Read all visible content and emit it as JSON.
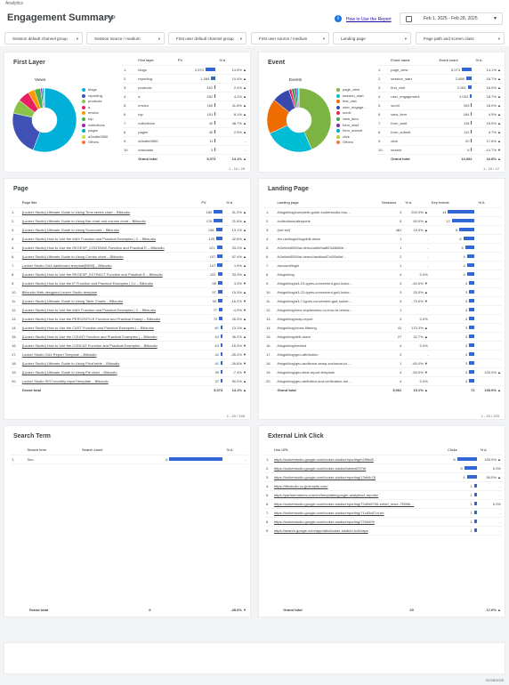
{
  "app": {
    "name": "Analytics"
  },
  "header": {
    "title": "Engagement Summary",
    "pop": "PoP",
    "how_to": "How to Use the Report",
    "date_range": "Feb 1, 2025 - Feb 28, 2025"
  },
  "filters": [
    "Session default channel group",
    "Session source / medium",
    "First user default channel group",
    "First user source / medium",
    "Landing page",
    "Page path and screen class"
  ],
  "first_layer": {
    "title": "First Layer",
    "chart_title": "Views",
    "legend": [
      "blogs",
      "reporting",
      "products",
      "a",
      "envica",
      "top",
      "collections",
      "pages",
      "a2ea6e0550",
      "Others"
    ],
    "colors": [
      "#00b0d8",
      "#3f51b5",
      "#8bc34a",
      "#e91e63",
      "#ff9800",
      "#4caf50",
      "#9c27b0",
      "#00acc1",
      "#cddc39",
      "#ff7043"
    ],
    "columns": [
      "First layer",
      "PV",
      "% Δ"
    ],
    "rows": [
      [
        "blogs",
        "2,670",
        "14.5% ▲"
      ],
      [
        "reporting",
        "1,084",
        "10.4% ▲"
      ],
      [
        "products",
        "340",
        "2.4% ▲"
      ],
      [
        "a",
        "282",
        "4.2% ▲"
      ],
      [
        "envica",
        "160",
        "41.8% ▲"
      ],
      [
        "top",
        "151",
        "8.1% ▲"
      ],
      [
        "collections",
        "40",
        "48.7% ▲"
      ],
      [
        "pages",
        "40",
        "2.5% ▲"
      ],
      [
        "a2ea6e0550",
        "11",
        "-"
      ],
      [
        "dowloads",
        "3",
        "-"
      ]
    ],
    "bars": [
      0.82,
      0.35,
      0.11,
      0.09,
      0.05,
      0.05,
      0.013,
      0.013,
      0.004,
      0.001
    ],
    "total": [
      "Grand total",
      "5,073",
      "14.1% ▲"
    ],
    "pager": "1 - 10 / 28"
  },
  "event": {
    "title": "Event",
    "chart_title": "Events",
    "legend": [
      "page_view",
      "session_start",
      "first_visit",
      "user_engage...",
      "scroll",
      "view_item",
      "form_start",
      "form_submit",
      "click",
      "Others"
    ],
    "colors": [
      "#7cb342",
      "#00bcd4",
      "#ef6c00",
      "#3949ab",
      "#e91e63",
      "#43a047",
      "#8e24aa",
      "#00acc1",
      "#c0ca33",
      "#ff7043"
    ],
    "columns": [
      "Event name",
      "Event count",
      "% Δ"
    ],
    "rows": [
      [
        "page_view",
        "5,073",
        "14.1% ▲"
      ],
      [
        "session_start",
        "2,889",
        "18.7% ▲"
      ],
      [
        "first_visit",
        "2,061",
        "16.0% ▲"
      ],
      [
        "user_engagement",
        "1,053",
        "18.7% ▲"
      ],
      [
        "scroll",
        "163",
        "18.0% ▲"
      ],
      [
        "view_item",
        "184",
        "4.9% ▲"
      ],
      [
        "form_start",
        "118",
        "15.5% ▲"
      ],
      [
        "form_submit",
        "112",
        "4.7% ▲"
      ],
      [
        "click",
        "20",
        "17.6% ▲"
      ],
      [
        "search",
        "6",
        "-14.7% ▼"
      ]
    ],
    "bars": [
      0.82,
      0.47,
      0.33,
      0.17,
      0.03,
      0.03,
      0.02,
      0.02,
      0.004,
      0.001
    ],
    "total": [
      "Grand total",
      "13,062",
      "16.8% ▲"
    ],
    "pager": "1 - 10 / 12"
  },
  "page": {
    "title": "Page",
    "columns": [
      "Page title",
      "PV",
      "% Δ"
    ],
    "rows": [
      [
        "[Looker Studio] Ultimate Guide to Using Time series chart – Blitzudio",
        "180",
        "31.2% ▲"
      ],
      [
        "[Looker Studio] Ultimate Guide to Using Bar chart and column chart – Blitzudio",
        "176",
        "21.8% ▲"
      ],
      [
        "[Looker Studio] Ultimate Guide to Using Scorecard – Blitzudio",
        "138",
        "13.1% ▲"
      ],
      [
        "[Looker Studio] How to Use the MAX Function and Practical Examples | C – Blitzudio",
        "129",
        "42.8% ▲"
      ],
      [
        "[Looker Studio] How to Use the REGEXP_CONTAINS Function and Practical E – Blitzudio",
        "121",
        "33.2% ▲"
      ],
      [
        "[Looker Studio] Ultimate Guide to Using Combo chart – Blitzudio",
        "107",
        "57.4% ▲"
      ],
      [
        "Looker Studio GA4 dashboard template[BEM] – Blitzudio",
        "107",
        "1.9% ▲"
      ],
      [
        "[Looker Studio] How to Use the REGEXP_EXTRACT Function and Practical E – Blitzudio",
        "102",
        "33.3% ▲"
      ],
      [
        "[Looker Studio] How to Use the IF Function and Practical Examples | Co – Blitzudio",
        "98",
        "3.3% ▼"
      ],
      [
        "Blitzudio Web-designed Looker Studio template",
        "97",
        "15.3% ▲"
      ],
      [
        "[Looker Studio] Ultimate Guide to Using Table Charts – Blitzudio",
        "90",
        "-16.2% ▼"
      ],
      [
        "[Looker Studio] How to Use the MAX Function and Practical Examples | C – Blitzudio",
        "77",
        "-4.9% ▼"
      ],
      [
        "[Looker Studio] How to Use the PERCENTILE Function and Practical Examp – Blitzudio",
        "72",
        "26.3% ▲"
      ],
      [
        "[Looker Studio] How to Use the CAST Function and Practical Examples | – Blitzudio",
        "49",
        "13.1% ▲"
      ],
      [
        "[Looker Studio] How to Use the COUNT Function and Practical Examples | – Blitzudio",
        "44",
        "36.2% ▲"
      ],
      [
        "[Looker Studio] How to Use the CONCAT Function and Practical Examples – Blitzudio",
        "43",
        "-16.3% ▼"
      ],
      [
        "Looker Studio GA4 Report Template – Blitzudio",
        "42",
        "-39.2% ▼"
      ],
      [
        "[Looker Studio] Ultimate Guide to Using Pivot table – Blitzudio",
        "41",
        "-26.8% ▼"
      ],
      [
        "[Looker Studio] Ultimate Guide to Using Pie chart – Blitzudio",
        "39",
        "-7.4% ▼"
      ],
      [
        "Looker Studio SEO monthly report template – Blitzudio",
        "37",
        "50.0% ▲"
      ]
    ],
    "bars": [
      1,
      0.98,
      0.77,
      0.72,
      0.67,
      0.59,
      0.59,
      0.57,
      0.54,
      0.54,
      0.5,
      0.43,
      0.4,
      0.27,
      0.24,
      0.24,
      0.23,
      0.23,
      0.22,
      0.21
    ],
    "total": [
      "Grand total",
      "5,073",
      "14.1% ▲"
    ],
    "pager": "1 - 20 / 245"
  },
  "landing": {
    "title": "Landing Page",
    "columns": [
      "Landing page",
      "Sessions",
      "% Δ",
      "Key events",
      "% Δ"
    ],
    "rows": [
      [
        "/blogs/blog/complete-guide-lookerstudio-bou…",
        "3",
        "200.0% ▲",
        "14",
        ""
      ],
      [
        "/collections/allreports",
        "6",
        "50.0% ▲",
        "12",
        ""
      ],
      [
        "(not set)",
        "481",
        "15.3% ▲",
        "8",
        ""
      ],
      [
        "/en-us/blogs/blog/drill-down",
        "1",
        "-",
        "6",
        ""
      ],
      [
        "/b2e6eb5550/ai-demo/ad0e5a8f23d3686b…",
        "1",
        "-",
        "5",
        ""
      ],
      [
        "/b2e6eb5550/ai-demo/dact6aa07c0f5d4ef…",
        "2",
        "-",
        "4",
        ""
      ],
      [
        "/account/login",
        "1",
        "-",
        "4",
        ""
      ],
      [
        "/blogs/blog",
        "4",
        "0.0%",
        "4",
        ""
      ],
      [
        "/blogs/blog/a3-19-types-convenient-ga4-looke…",
        "3",
        "-40.0% ▼",
        "3",
        ""
      ],
      [
        "/blogs/blog/a3-22-types-convenient-ga4-looke…",
        "3",
        "25.0% ▲",
        "3",
        ""
      ],
      [
        "/blogs/blog/a3-7-types-convenient-ga4-looker-…",
        "3",
        "-75.0% ▼",
        "3",
        ""
      ],
      [
        "/blogs/blog/new-explanation-on-how-to-renew-…",
        "1",
        "-",
        "3",
        ""
      ],
      [
        "/blogs/blog/map-report",
        "3",
        "0.0%",
        "3",
        ""
      ],
      [
        "/blogs/blog/cross-filtering",
        "41",
        "170.3% ▲",
        "3",
        ""
      ],
      [
        "/blogs/blog/drill-down",
        "27",
        "32.7% ▲",
        "3",
        ""
      ],
      [
        "/blogs/blog/embed",
        "4",
        "0.0%",
        "3",
        ""
      ],
      [
        "/blogs/blog/geo-attribution",
        "2",
        "-",
        "3",
        ""
      ],
      [
        "/blogs/blog/geo-audience-setup-exclusive-ici-…",
        "1",
        "-60.0% ▼",
        "3",
        ""
      ],
      [
        "/blogs/blog/geo-best-report-template",
        "4",
        "-50.0% ▼",
        "3",
        "100.0% ▲"
      ],
      [
        "/blogs/blog/geo-definition-and-verification-me…",
        "4",
        "0.0%",
        "3",
        ""
      ]
    ],
    "bars": [
      1,
      0.86,
      0.57,
      0.43,
      0.36,
      0.29,
      0.29,
      0.29,
      0.21,
      0.21,
      0.21,
      0.21,
      0.21,
      0.21,
      0.21,
      0.21,
      0.21,
      0.21,
      0.21,
      0.21
    ],
    "total": [
      "Grand total",
      "5,062",
      "15.1% ▲",
      "72",
      "100.0% ▲"
    ],
    "pager": "1 - 20 / 293"
  },
  "search": {
    "title": "Search Term",
    "columns": [
      "Search term",
      "Search count",
      "% Δ"
    ],
    "rows": [
      [
        "Seo",
        "6",
        "-"
      ]
    ],
    "bars": [
      1
    ],
    "total": [
      "Grand total",
      "6",
      "-28.6% ▼"
    ],
    "pager": "1 - 1 / 1"
  },
  "external": {
    "title": "External Link Click",
    "columns": [
      "Link URL",
      "Clicks",
      "% Δ"
    ],
    "rows": [
      [
        "https://lookerstudio.google.com/looker-studio/reporting/n29fdd5",
        "8",
        "100.0% ▲"
      ],
      [
        "https://lookerstudio.google.com/looker-studio/tables6297bf",
        "5",
        "0.0%"
      ],
      [
        "https://lookerstudio.google.com/looker-studio/reporting/13df4b78",
        "4",
        "50.0% ▲"
      ],
      [
        "https://lifestudio.co.jp/shopify.com/",
        "1",
        "-"
      ],
      [
        "https://partnermetrics.com/en/templates/google-analytics4-reports/",
        "1",
        "-"
      ],
      [
        "https://lookerstudio.google.com/looker-studio/reporting/72d9d5706-eebef_rescr-7350fb…",
        "1",
        "0.0%"
      ],
      [
        "https://lookerstudio.google.com/looker-studio/reporting/71c83c87cf-eb",
        "1",
        "-"
      ],
      [
        "https://lookerstudio.google.com/looker-studio/reporting/720d409",
        "1",
        "-"
      ],
      [
        "https://search.google.com/app/ratio/looker-studio/r-bdd-faps",
        "1",
        "-"
      ]
    ],
    "bars": [
      1,
      0.63,
      0.5,
      0.13,
      0.13,
      0.13,
      0.13,
      0.13,
      0.13
    ],
    "total": [
      "Grand total",
      "20",
      "17.6% ▲"
    ],
    "pager": "1 - 9 / 9"
  },
  "footer": {
    "timestamp": "02/28/2025"
  }
}
